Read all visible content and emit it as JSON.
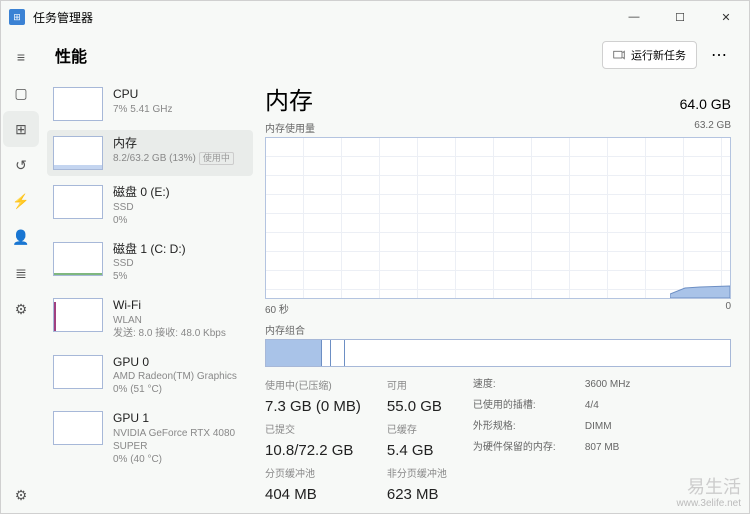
{
  "app": {
    "title": "任务管理器"
  },
  "window_controls": {
    "min": "—",
    "max": "☐",
    "close": "✕"
  },
  "header": {
    "title": "性能",
    "new_task": "运行新任务"
  },
  "nav": [
    {
      "name": "menu-icon",
      "glyph": "≡"
    },
    {
      "name": "processes-icon",
      "glyph": "▢"
    },
    {
      "name": "performance-icon",
      "glyph": "⊞",
      "active": true
    },
    {
      "name": "history-icon",
      "glyph": "↺"
    },
    {
      "name": "startup-icon",
      "glyph": "⚡"
    },
    {
      "name": "users-icon",
      "glyph": "👤"
    },
    {
      "name": "details-icon",
      "glyph": "≣"
    },
    {
      "name": "services-icon",
      "glyph": "⚙"
    }
  ],
  "cards": {
    "cpu": {
      "title": "CPU",
      "sub": "7%  5.41 GHz"
    },
    "memory": {
      "title": "内存",
      "sub": "8.2/63.2 GB (13%)",
      "badge": "使用中"
    },
    "disk0": {
      "title": "磁盘 0 (E:)",
      "sub": "SSD",
      "sub2": "0%"
    },
    "disk1": {
      "title": "磁盘 1 (C: D:)",
      "sub": "SSD",
      "sub2": "5%"
    },
    "wifi": {
      "title": "Wi-Fi",
      "sub": "WLAN",
      "sub2": "发送: 8.0  接收: 48.0 Kbps"
    },
    "gpu0": {
      "title": "GPU 0",
      "sub": "AMD Radeon(TM) Graphics",
      "sub2": "0% (51 °C)"
    },
    "gpu1": {
      "title": "GPU 1",
      "sub": "NVIDIA GeForce RTX 4080 SUPER",
      "sub2": "0% (40 °C)"
    }
  },
  "detail": {
    "title": "内存",
    "total": "64.0 GB",
    "usage_label": "内存使用量",
    "graph_max": "63.2 GB",
    "time_left": "60 秒",
    "time_right": "0",
    "comp_label": "内存组合",
    "comp_segments": [
      {
        "w": 12,
        "bg": "#a9c3e8",
        "br": "1px solid #6d8fc4"
      },
      {
        "w": 2,
        "bg": "#fff",
        "br": "1px solid #6d8fc4"
      },
      {
        "w": 3,
        "bg": "#fff",
        "br": "1px solid #6d8fc4"
      },
      {
        "w": 83,
        "bg": "#fff",
        "br": "none"
      }
    ],
    "stats_left": [
      {
        "lbl": "使用中(已压缩)",
        "val": "7.3 GB (0 MB)"
      },
      {
        "lbl": "已提交",
        "val": "10.8/72.2 GB"
      },
      {
        "lbl": "分页缓冲池",
        "val": "404 MB"
      }
    ],
    "stats_mid": [
      {
        "lbl": "可用",
        "val": "55.0 GB"
      },
      {
        "lbl": "已缓存",
        "val": "5.4 GB"
      },
      {
        "lbl": "非分页缓冲池",
        "val": "623 MB"
      }
    ],
    "stats_right": [
      {
        "k": "速度:",
        "v": "3600 MHz"
      },
      {
        "k": "已使用的插槽:",
        "v": "4/4"
      },
      {
        "k": "外形规格:",
        "v": "DIMM"
      },
      {
        "k": "为硬件保留的内存:",
        "v": "807 MB"
      }
    ]
  },
  "watermark": {
    "brand": "易生活",
    "url": "www.3elife.net"
  },
  "colors": {
    "accent": "#6d8fc4",
    "fill": "#a9c3e8"
  }
}
